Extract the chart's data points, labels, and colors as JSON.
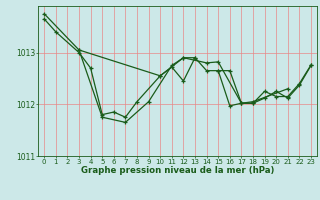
{
  "hours": [
    0,
    1,
    2,
    3,
    4,
    5,
    6,
    7,
    8,
    9,
    10,
    11,
    12,
    13,
    14,
    15,
    16,
    17,
    18,
    19,
    20,
    21,
    22,
    23
  ],
  "line1_x": [
    0,
    1,
    3,
    4,
    5,
    6,
    7,
    8,
    10,
    12,
    13
  ],
  "line1_y": [
    1013.65,
    1013.4,
    1013.0,
    1012.7,
    1011.8,
    1011.85,
    1011.75,
    1012.05,
    1012.55,
    1012.9,
    1012.9
  ],
  "line2_x": [
    0,
    3,
    5,
    7,
    9,
    11,
    12,
    14,
    15,
    17,
    18,
    21
  ],
  "line2_y": [
    1013.75,
    1013.05,
    1011.75,
    1011.65,
    1012.05,
    1012.75,
    1012.9,
    1012.8,
    1012.82,
    1012.02,
    1012.05,
    1012.3
  ],
  "line3_x": [
    3,
    10,
    11,
    12,
    13,
    14,
    15,
    16,
    17,
    18,
    19,
    20,
    21,
    22,
    23
  ],
  "line3_y": [
    1013.05,
    1012.55,
    1012.72,
    1012.45,
    1012.9,
    1012.65,
    1012.65,
    1011.97,
    1012.02,
    1012.02,
    1012.12,
    1012.25,
    1012.12,
    1012.37,
    1012.75
  ],
  "line4_x": [
    15,
    16,
    17,
    18,
    19,
    20,
    21,
    22,
    23
  ],
  "line4_y": [
    1012.65,
    1012.65,
    1012.02,
    1012.02,
    1012.25,
    1012.15,
    1012.15,
    1012.4,
    1012.76
  ],
  "ylim": [
    1011.0,
    1013.9
  ],
  "yticks": [
    1011,
    1012,
    1013
  ],
  "xticks": [
    0,
    1,
    2,
    3,
    4,
    5,
    6,
    7,
    8,
    9,
    10,
    11,
    12,
    13,
    14,
    15,
    16,
    17,
    18,
    19,
    20,
    21,
    22,
    23
  ],
  "line_color": "#1a5c1a",
  "bg_color": "#cce8e8",
  "vgrid_color": "#e88888",
  "hgrid_color": "#e88888",
  "xlabel": "Graphe pression niveau de la mer (hPa)",
  "xlabel_color": "#1a5c1a",
  "tick_color": "#1a5c1a",
  "tick_fontsize": 5.0,
  "xlabel_fontsize": 6.2,
  "lw": 0.9,
  "marker_size": 3.5
}
